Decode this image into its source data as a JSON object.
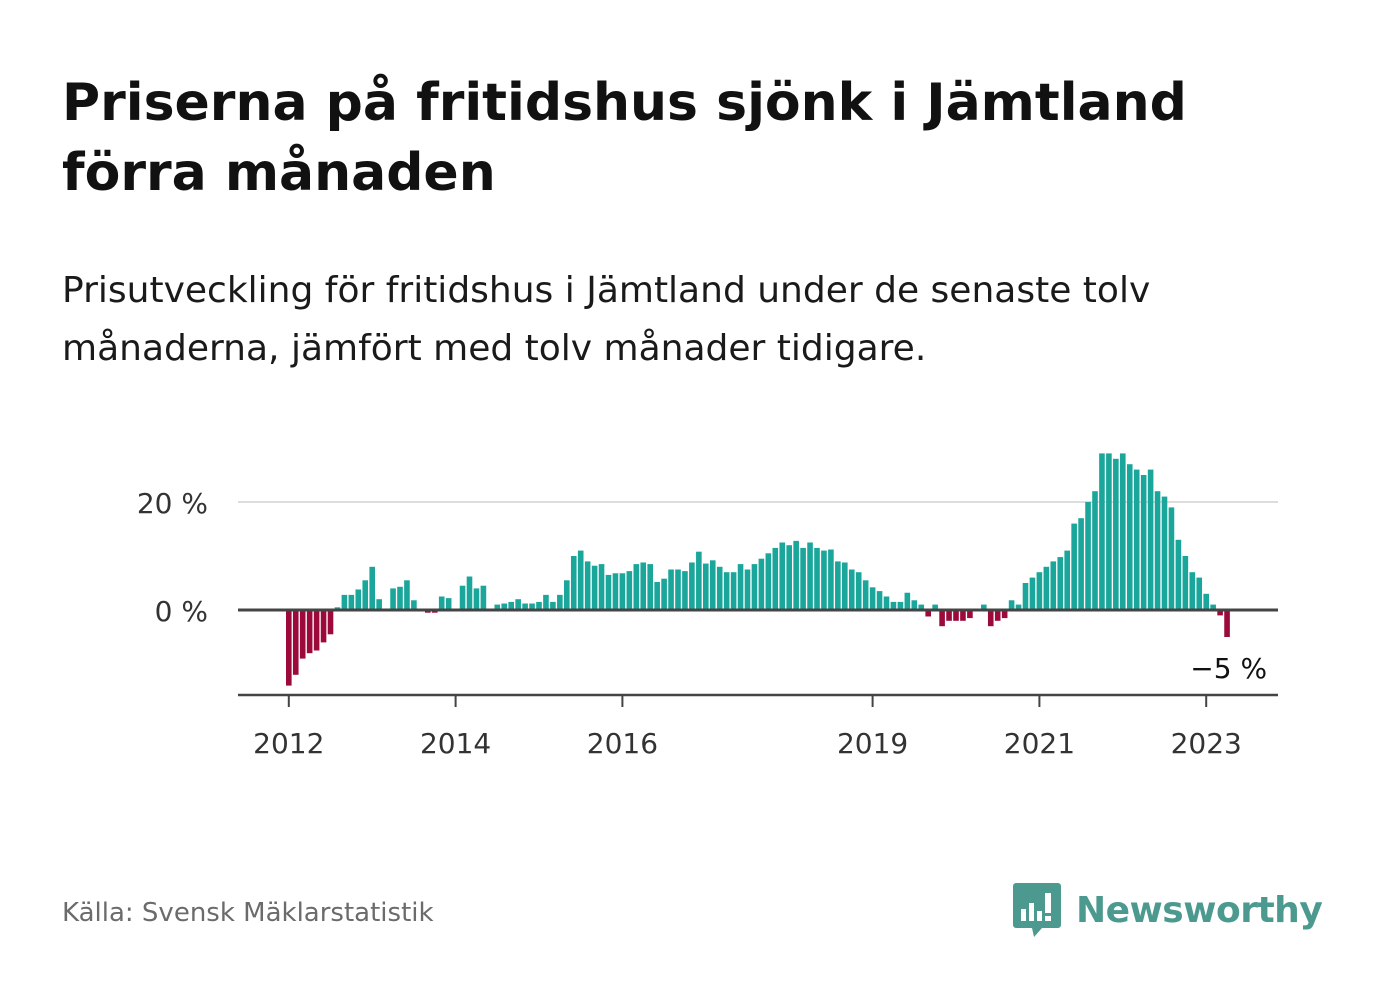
{
  "header": {
    "title": "Priserna på fritidshus sjönk i Jämtland förra månaden",
    "subtitle": "Prisutveckling för fritidshus i Jämtland under de senaste tolv månaderna, jämfört med tolv månader tidigare."
  },
  "footer": {
    "source": "Källa: Svensk Mäklarstatistik",
    "brand": "Newsworthy",
    "brand_icon": "bar-chart-icon"
  },
  "colors": {
    "positive": "#1aa69a",
    "negative": "#9c0a3c",
    "brand": "#4c9a8f",
    "grid": "#dddddd",
    "axis": "#444444"
  },
  "chart_data": {
    "type": "bar",
    "x_start": "2012-01",
    "frequency": "monthly",
    "y_unit": "%",
    "ylim": [
      -16,
      30
    ],
    "y_ticks": [
      0,
      20
    ],
    "y_tick_labels": [
      "0 %",
      "20 %"
    ],
    "x_ticks": [
      "2012",
      "2014",
      "2016",
      "2019",
      "2021",
      "2023"
    ],
    "x_tick_months": [
      "2012-01",
      "2014-01",
      "2016-01",
      "2019-01",
      "2021-01",
      "2023-01"
    ],
    "grid": true,
    "legend": "none",
    "end_label": "−5 %",
    "values": [
      -14,
      -12,
      -9,
      -8,
      -7.5,
      -6,
      -4.5,
      0.5,
      2.8,
      2.8,
      3.8,
      5.5,
      8,
      2,
      0,
      4,
      4.3,
      5.5,
      1.8,
      0,
      -0.5,
      -0.5,
      2.5,
      2.2,
      0,
      4.5,
      6.2,
      4,
      4.5,
      0,
      1,
      1.2,
      1.5,
      2,
      1.2,
      1.2,
      1.5,
      2.8,
      1.5,
      2.8,
      5.5,
      10,
      11,
      9,
      8.2,
      8.5,
      6.5,
      6.8,
      6.8,
      7.2,
      8.5,
      8.8,
      8.5,
      5.2,
      5.8,
      7.5,
      7.5,
      7.2,
      8.8,
      10.8,
      8.6,
      9.2,
      8,
      7,
      7,
      8.5,
      7.5,
      8.5,
      9.5,
      10.5,
      11.5,
      12.5,
      12.0,
      12.8,
      11.5,
      12.5,
      11.5,
      11.0,
      11.2,
      9,
      8.8,
      7.5,
      7.0,
      5.5,
      4.2,
      3.5,
      2.5,
      1.5,
      1.5,
      3.2,
      1.8,
      1.0,
      -1.2,
      1.0,
      -3.0,
      -2.0,
      -2.0,
      -2.0,
      -1.5,
      0,
      1.0,
      -3.0,
      -2.0,
      -1.5,
      1.8,
      1.0,
      5.0,
      6.0,
      7.0,
      8.0,
      9.0,
      9.8,
      11.0,
      16.0,
      17.0,
      20.0,
      22.0,
      29.0,
      29.0,
      28.0,
      29.0,
      27.0,
      26.0,
      25.0,
      26.0,
      22.0,
      21.0,
      19.0,
      13.0,
      10.0,
      7.0,
      6.0,
      3.0,
      1.0,
      -1.0,
      -5.0
    ]
  }
}
